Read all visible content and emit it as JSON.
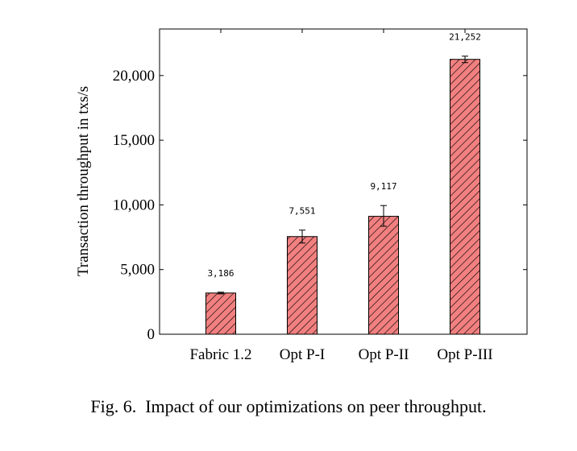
{
  "chart_data": {
    "type": "bar",
    "categories": [
      "Fabric 1.2",
      "Opt P-I",
      "Opt P-II",
      "Opt P-III"
    ],
    "values": [
      3186,
      7551,
      9117,
      21252
    ],
    "value_labels": [
      "3,186",
      "7,551",
      "9,117",
      "21,252"
    ],
    "error_bars": [
      {
        "low": 3120,
        "high": 3250
      },
      {
        "low": 7050,
        "high": 8050
      },
      {
        "low": 8350,
        "high": 9950
      },
      {
        "low": 21000,
        "high": 21500
      }
    ],
    "ylabel": "Transaction throughput in txs/s",
    "xlabel": "",
    "ylim": [
      0,
      23600
    ],
    "yticks": [
      0,
      5000,
      10000,
      15000,
      20000
    ],
    "ytick_labels": [
      "0",
      "5,000",
      "10,000",
      "15,000",
      "20,000"
    ],
    "bar_color": "#f28080",
    "hatch": "diagonal",
    "grid": false,
    "legend": "none"
  },
  "caption": "Fig. 6.  Impact of our optimizations on peer throughput."
}
